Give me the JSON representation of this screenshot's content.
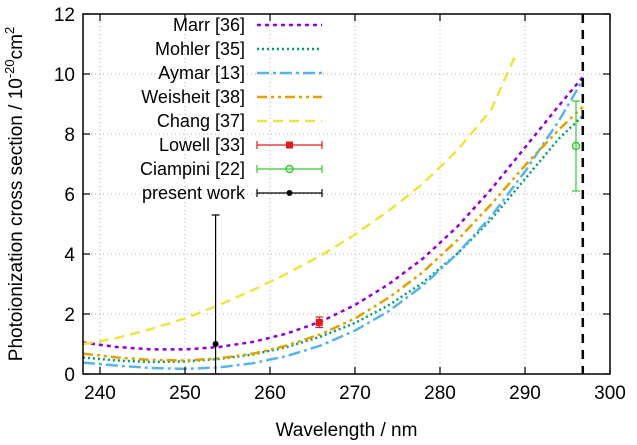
{
  "chart_data": {
    "type": "line",
    "xlabel": "Wavelength / nm",
    "ylabel": "Photoionization cross section / 10",
    "ylabel_exponent": "-20",
    "ylabel_unit": "cm",
    "ylabel_unit_exponent": "2",
    "xlim": [
      238,
      300
    ],
    "ylim": [
      0,
      12
    ],
    "x_ticks": [
      240,
      250,
      260,
      270,
      280,
      290,
      300
    ],
    "y_ticks": [
      0,
      2,
      4,
      6,
      8,
      10,
      12
    ],
    "grid": true,
    "legend_position": "top-left",
    "vertical_marker_x": 296.8,
    "series": [
      {
        "name": "Marr [36]",
        "style": "dotted-short",
        "color": "#9400d3",
        "points": [
          [
            238,
            1.05
          ],
          [
            242,
            0.9
          ],
          [
            246,
            0.82
          ],
          [
            250,
            0.82
          ],
          [
            254,
            0.9
          ],
          [
            258,
            1.07
          ],
          [
            262,
            1.35
          ],
          [
            266,
            1.75
          ],
          [
            270,
            2.3
          ],
          [
            274,
            3.0
          ],
          [
            278,
            3.85
          ],
          [
            282,
            4.9
          ],
          [
            286,
            6.15
          ],
          [
            290,
            7.55
          ],
          [
            294,
            8.95
          ],
          [
            296.8,
            9.9
          ]
        ]
      },
      {
        "name": "Mohler [35]",
        "style": "dotted",
        "color": "#009e73",
        "points": [
          [
            238,
            0.55
          ],
          [
            242,
            0.45
          ],
          [
            246,
            0.4
          ],
          [
            250,
            0.42
          ],
          [
            254,
            0.5
          ],
          [
            258,
            0.65
          ],
          [
            262,
            0.9
          ],
          [
            266,
            1.25
          ],
          [
            270,
            1.7
          ],
          [
            274,
            2.3
          ],
          [
            278,
            3.05
          ],
          [
            282,
            4.0
          ],
          [
            286,
            5.15
          ],
          [
            290,
            6.5
          ],
          [
            294,
            7.85
          ],
          [
            296.8,
            8.6
          ]
        ]
      },
      {
        "name": "Aymar [13]",
        "style": "dash-dot",
        "color": "#56b4e9",
        "points": [
          [
            238,
            0.38
          ],
          [
            242,
            0.28
          ],
          [
            246,
            0.2
          ],
          [
            250,
            0.17
          ],
          [
            254,
            0.22
          ],
          [
            258,
            0.36
          ],
          [
            262,
            0.6
          ],
          [
            266,
            0.95
          ],
          [
            270,
            1.45
          ],
          [
            274,
            2.1
          ],
          [
            278,
            2.95
          ],
          [
            282,
            4.0
          ],
          [
            286,
            5.25
          ],
          [
            290,
            6.75
          ],
          [
            294,
            8.45
          ],
          [
            296.8,
            9.8
          ]
        ]
      },
      {
        "name": "Weisheit [38]",
        "style": "dash-dot-dot",
        "color": "#e69f00",
        "points": [
          [
            238,
            0.68
          ],
          [
            242,
            0.55
          ],
          [
            246,
            0.47
          ],
          [
            250,
            0.45
          ],
          [
            254,
            0.52
          ],
          [
            258,
            0.68
          ],
          [
            262,
            0.95
          ],
          [
            266,
            1.33
          ],
          [
            270,
            1.85
          ],
          [
            274,
            2.55
          ],
          [
            278,
            3.4
          ],
          [
            282,
            4.45
          ],
          [
            286,
            5.65
          ],
          [
            290,
            6.95
          ],
          [
            294,
            8.15
          ],
          [
            296.8,
            8.9
          ]
        ]
      },
      {
        "name": "Chang [37]",
        "style": "dashed",
        "color": "#f0e442",
        "points": [
          [
            238,
            1.0
          ],
          [
            242,
            1.2
          ],
          [
            246,
            1.5
          ],
          [
            250,
            1.85
          ],
          [
            254,
            2.3
          ],
          [
            258,
            2.8
          ],
          [
            262,
            3.35
          ],
          [
            266,
            3.95
          ],
          [
            270,
            4.65
          ],
          [
            274,
            5.45
          ],
          [
            278,
            6.35
          ],
          [
            282,
            7.45
          ],
          [
            286,
            8.8
          ],
          [
            289,
            10.7
          ]
        ]
      }
    ],
    "error_series": [
      {
        "name": "Lowell [33]",
        "color": "#e41a1c",
        "marker": "square",
        "points": [
          [
            265.8,
            1.72,
            1.55,
            1.9
          ]
        ]
      },
      {
        "name": "Ciampini [22]",
        "color": "#33cc33",
        "marker": "circle",
        "points": [
          [
            296,
            7.6,
            6.1,
            9.1
          ]
        ]
      },
      {
        "name": "present work",
        "color": "#000000",
        "marker": "dot",
        "points": [
          [
            253.6,
            1.0,
            0,
            5.3
          ]
        ]
      }
    ]
  }
}
